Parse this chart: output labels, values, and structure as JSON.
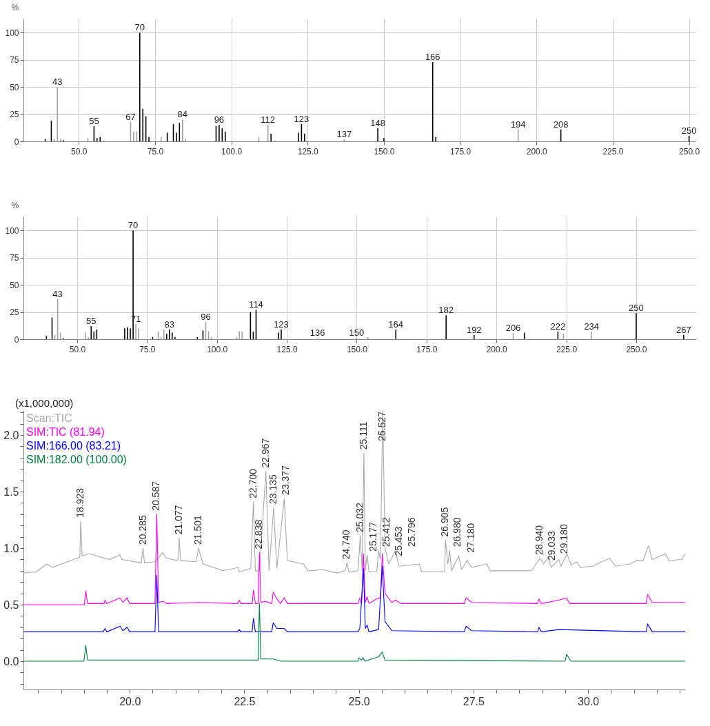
{
  "chart_data": [
    {
      "type": "bar",
      "ylabel": "%",
      "grid": true,
      "xlim": [
        33,
        251
      ],
      "ylim": [
        0,
        113
      ],
      "xticks": [
        {
          "value": 50,
          "label": "50.0"
        },
        {
          "value": 75,
          "label": "75.0"
        },
        {
          "value": 100,
          "label": "100.0"
        },
        {
          "value": 125,
          "label": "125.0"
        },
        {
          "value": 150,
          "label": "150.0"
        },
        {
          "value": 175,
          "label": "175.0"
        },
        {
          "value": 200,
          "label": "200.0"
        },
        {
          "value": 225,
          "label": "225.0"
        },
        {
          "value": 250,
          "label": "250.0"
        }
      ],
      "yticks": [
        0,
        25,
        50,
        75,
        100
      ],
      "x": [
        39,
        41,
        42,
        43,
        44,
        45,
        53,
        55,
        56,
        57,
        67,
        68,
        69,
        70,
        71,
        72,
        73,
        77,
        79,
        81,
        82,
        83,
        84,
        85,
        95,
        96,
        97,
        98,
        109,
        112,
        113,
        122,
        123,
        124,
        137,
        148,
        150,
        166,
        167,
        194,
        208,
        250
      ],
      "values": [
        2,
        19,
        2,
        50,
        2,
        1,
        3,
        14,
        3,
        4,
        18,
        9,
        9,
        100,
        30,
        23,
        4,
        4,
        8,
        16,
        8,
        17,
        20,
        2,
        14,
        15,
        12,
        9,
        4,
        15,
        7,
        8,
        16,
        7,
        2,
        12,
        3,
        73,
        4,
        11,
        11,
        5
      ],
      "colors": [
        "#000000",
        "#000000",
        "#a0a0a0",
        "#a0a0a0",
        "#a0a0a0",
        "#000000",
        "#a0a0a0",
        "#000000",
        "#000000",
        "#000000",
        "#a0a0a0",
        "#a0a0a0",
        "#a0a0a0",
        "#000000",
        "#000000",
        "#000000",
        "#000000",
        "#a0a0a0",
        "#000000",
        "#000000",
        "#000000",
        "#000000",
        "#a0a0a0",
        "#a0a0a0",
        "#000000",
        "#000000",
        "#000000",
        "#000000",
        "#a0a0a0",
        "#a0a0a0",
        "#000000",
        "#000000",
        "#000000",
        "#000000",
        "#a0a0a0",
        "#000000",
        "#000000",
        "#000000",
        "#000000",
        "#a0a0a0",
        "#000000",
        "#000000"
      ],
      "annotations": [
        {
          "text": "43",
          "x": 43,
          "y": 50
        },
        {
          "text": "55",
          "x": 55,
          "y": 14
        },
        {
          "text": "67",
          "x": 67,
          "y": 18
        },
        {
          "text": "70",
          "x": 70,
          "y": 100
        },
        {
          "text": "84",
          "x": 84,
          "y": 20
        },
        {
          "text": "96",
          "x": 96,
          "y": 15
        },
        {
          "text": "112",
          "x": 112,
          "y": 15
        },
        {
          "text": "123",
          "x": 123,
          "y": 16
        },
        {
          "text": "137",
          "x": 137,
          "y": 2
        },
        {
          "text": "148",
          "x": 148,
          "y": 12
        },
        {
          "text": "166",
          "x": 166,
          "y": 73
        },
        {
          "text": "194",
          "x": 194,
          "y": 11
        },
        {
          "text": "208",
          "x": 208,
          "y": 11
        },
        {
          "text": "250",
          "x": 250,
          "y": 5
        }
      ]
    },
    {
      "type": "bar",
      "ylabel": "%",
      "grid": true,
      "xlim": [
        32,
        270
      ],
      "ylim": [
        0,
        113
      ],
      "xticks": [
        {
          "value": 50,
          "label": "50.0"
        },
        {
          "value": 75,
          "label": "75.0"
        },
        {
          "value": 100,
          "label": "100.0"
        },
        {
          "value": 125,
          "label": "125.0"
        },
        {
          "value": 150,
          "label": "150.0"
        },
        {
          "value": 175,
          "label": "175.0"
        },
        {
          "value": 200,
          "label": "200.0"
        },
        {
          "value": 225,
          "label": "225.0"
        },
        {
          "value": 250,
          "label": "250.0"
        }
      ],
      "yticks": [
        0,
        25,
        50,
        75,
        100
      ],
      "x": [
        39,
        41,
        42,
        43,
        44,
        45,
        53,
        54,
        55,
        56,
        57,
        67,
        68,
        69,
        70,
        71,
        72,
        77,
        79,
        80,
        81,
        82,
        83,
        84,
        85,
        93,
        95,
        96,
        97,
        98,
        107,
        108,
        109,
        112,
        113,
        114,
        122,
        123,
        136,
        150,
        154,
        164,
        182,
        192,
        206,
        210,
        222,
        224,
        234,
        250,
        267
      ],
      "values": [
        3,
        20,
        4,
        37,
        6,
        1,
        6,
        2,
        12,
        7,
        9,
        10,
        11,
        10,
        100,
        14,
        10,
        2,
        7,
        2,
        9,
        5,
        9,
        6,
        2,
        2,
        8,
        16,
        7,
        2,
        2,
        7,
        7,
        25,
        7,
        27,
        6,
        9,
        1,
        1,
        2,
        9,
        22,
        4,
        6,
        6,
        7,
        5,
        7,
        24,
        4
      ],
      "colors": [
        "#000000",
        "#000000",
        "#a0a0a0",
        "#a0a0a0",
        "#a0a0a0",
        "#000000",
        "#a0a0a0",
        "#a0a0a0",
        "#000000",
        "#000000",
        "#000000",
        "#000000",
        "#000000",
        "#000000",
        "#000000",
        "#a0a0a0",
        "#a0a0a0",
        "#000000",
        "#a0a0a0",
        "#a0a0a0",
        "#a0a0a0",
        "#000000",
        "#000000",
        "#000000",
        "#000000",
        "#000000",
        "#000000",
        "#a0a0a0",
        "#a0a0a0",
        "#a0a0a0",
        "#a0a0a0",
        "#a0a0a0",
        "#a0a0a0",
        "#000000",
        "#000000",
        "#000000",
        "#000000",
        "#000000",
        "#a0a0a0",
        "#a0a0a0",
        "#a0a0a0",
        "#000000",
        "#000000",
        "#000000",
        "#a0a0a0",
        "#000000",
        "#000000",
        "#a0a0a0",
        "#a0a0a0",
        "#000000",
        "#000000"
      ],
      "annotations": [
        {
          "text": "43",
          "x": 43,
          "y": 37
        },
        {
          "text": "55",
          "x": 55,
          "y": 12
        },
        {
          "text": "70",
          "x": 70,
          "y": 100
        },
        {
          "text": "71",
          "x": 71,
          "y": 14
        },
        {
          "text": "83",
          "x": 83,
          "y": 9
        },
        {
          "text": "96",
          "x": 96,
          "y": 16
        },
        {
          "text": "114",
          "x": 114,
          "y": 27
        },
        {
          "text": "123",
          "x": 123,
          "y": 9
        },
        {
          "text": "136",
          "x": 136,
          "y": 1
        },
        {
          "text": "150",
          "x": 150,
          "y": 1
        },
        {
          "text": "164",
          "x": 164,
          "y": 9
        },
        {
          "text": "182",
          "x": 182,
          "y": 22
        },
        {
          "text": "192",
          "x": 192,
          "y": 4
        },
        {
          "text": "206",
          "x": 206,
          "y": 6
        },
        {
          "text": "222",
          "x": 222,
          "y": 7
        },
        {
          "text": "234",
          "x": 234,
          "y": 7
        },
        {
          "text": "250",
          "x": 250,
          "y": 24
        },
        {
          "text": "267",
          "x": 267,
          "y": 4
        }
      ]
    },
    {
      "type": "line",
      "legend": "top left",
      "xlim": [
        17.68,
        32.12
      ],
      "ylim": [
        -0.25,
        2.22
      ],
      "xticks": [
        {
          "value": 18,
          "label": null
        },
        {
          "value": 18.5,
          "label": null
        },
        {
          "value": 19,
          "label": null
        },
        {
          "value": 19.5,
          "label": null
        },
        {
          "value": 20,
          "label": "20.0"
        },
        {
          "value": 20.5,
          "label": null
        },
        {
          "value": 21,
          "label": null
        },
        {
          "value": 21.5,
          "label": null
        },
        {
          "value": 22,
          "label": null
        },
        {
          "value": 22.5,
          "label": "22.5"
        },
        {
          "value": 23,
          "label": null
        },
        {
          "value": 23.5,
          "label": null
        },
        {
          "value": 24,
          "label": null
        },
        {
          "value": 24.5,
          "label": null
        },
        {
          "value": 25,
          "label": "25.0"
        },
        {
          "value": 25.5,
          "label": null
        },
        {
          "value": 26,
          "label": null
        },
        {
          "value": 26.5,
          "label": null
        },
        {
          "value": 27,
          "label": null
        },
        {
          "value": 27.5,
          "label": "27.5"
        },
        {
          "value": 28,
          "label": null
        },
        {
          "value": 28.5,
          "label": null
        },
        {
          "value": 29,
          "label": null
        },
        {
          "value": 29.5,
          "label": null
        },
        {
          "value": 30,
          "label": "30.0"
        },
        {
          "value": 30.5,
          "label": null
        },
        {
          "value": 31,
          "label": null
        },
        {
          "value": 31.5,
          "label": null
        },
        {
          "value": 32,
          "label": null
        }
      ],
      "yticks": [
        {
          "value": -0.2,
          "label": null
        },
        {
          "value": -0.1,
          "label": null
        },
        {
          "value": 0,
          "label": "0.0"
        },
        {
          "value": 0.1,
          "label": null
        },
        {
          "value": 0.2,
          "label": null
        },
        {
          "value": 0.3,
          "label": null
        },
        {
          "value": 0.4,
          "label": null
        },
        {
          "value": 0.5,
          "label": "0.5"
        },
        {
          "value": 0.6,
          "label": null
        },
        {
          "value": 0.7,
          "label": null
        },
        {
          "value": 0.8,
          "label": null
        },
        {
          "value": 0.9,
          "label": null
        },
        {
          "value": 1,
          "label": "1.0"
        },
        {
          "value": 1.1,
          "label": null
        },
        {
          "value": 1.2,
          "label": null
        },
        {
          "value": 1.3,
          "label": null
        },
        {
          "value": 1.4,
          "label": null
        },
        {
          "value": 1.5,
          "label": "1.5"
        },
        {
          "value": 1.6,
          "label": null
        },
        {
          "value": 1.7,
          "label": null
        },
        {
          "value": 1.8,
          "label": null
        },
        {
          "value": 1.9,
          "label": null
        },
        {
          "value": 2,
          "label": "2.0"
        },
        {
          "value": 2.1,
          "label": null
        },
        {
          "value": 2.2,
          "label": null
        }
      ],
      "series": [
        {
          "name": "Scan:TIC",
          "color": "#a9a9a9",
          "x": [
            17.68,
            17.96,
            18.19,
            18.31,
            18.91,
            18.93,
            18.96,
            19.11,
            19.56,
            19.79,
            19.83,
            20.25,
            20.29,
            20.32,
            20.55,
            20.72,
            20.8,
            21.05,
            21.08,
            21.11,
            21.45,
            21.5,
            21.6,
            22.04,
            22.37,
            22.39,
            22.64,
            22.7,
            22.74,
            22.83,
            22.97,
            23.04,
            23.14,
            23.21,
            23.37,
            23.44,
            23.79,
            23.89,
            24.21,
            24.53,
            24.7,
            24.74,
            24.78,
            24.98,
            25.03,
            25.07,
            25.11,
            25.14,
            25.18,
            25.22,
            25.39,
            25.43,
            25.47,
            25.52,
            25.57,
            25.65,
            25.8,
            25.87,
            26.32,
            26.37,
            26.87,
            26.89,
            26.94,
            26.98,
            27.02,
            27.18,
            27.24,
            27.36,
            27.46,
            27.79,
            27.86,
            28.21,
            28.76,
            28.8,
            28.95,
            29.03,
            29.13,
            29.2,
            29.36,
            29.41,
            29.54,
            29.63,
            29.75,
            29.83,
            30.1,
            30.25,
            30.47,
            30.6,
            30.9,
            31.07,
            31.2,
            31.32,
            31.4,
            31.69,
            31.77,
            32.04,
            32.12
          ],
          "values": [
            0.78,
            0.79,
            0.86,
            0.83,
            0.92,
            1.24,
            0.93,
            0.95,
            0.9,
            0.94,
            0.9,
            0.87,
            1.0,
            0.87,
            0.88,
            0.96,
            0.91,
            0.89,
            1.09,
            0.89,
            0.88,
            1.0,
            0.86,
            0.8,
            0.83,
            0.79,
            0.82,
            1.41,
            0.8,
            0.8,
            1.68,
            0.8,
            1.36,
            0.82,
            1.44,
            0.89,
            0.86,
            0.8,
            0.81,
            0.78,
            0.8,
            0.87,
            0.79,
            0.8,
            1.11,
            0.8,
            1.84,
            0.8,
            0.94,
            0.79,
            0.79,
            0.98,
            0.9,
            2.22,
            1.0,
            0.86,
            0.98,
            0.84,
            0.86,
            0.79,
            0.79,
            1.07,
            0.86,
            0.98,
            0.8,
            0.93,
            0.81,
            0.89,
            0.83,
            0.86,
            0.8,
            0.8,
            0.8,
            0.82,
            0.91,
            0.86,
            0.92,
            0.83,
            0.9,
            0.84,
            0.95,
            0.85,
            0.88,
            0.83,
            0.84,
            0.87,
            0.91,
            0.84,
            0.86,
            0.89,
            0.89,
            1.02,
            0.9,
            0.95,
            0.89,
            0.9,
            0.95
          ]
        },
        {
          "name": "SIM:TIC (81.94)",
          "color": "#ff00ff",
          "x": [
            17.68,
            19.01,
            19.04,
            19.08,
            19.44,
            19.46,
            19.5,
            19.79,
            19.85,
            19.94,
            20.0,
            20.55,
            20.59,
            20.63,
            20.73,
            20.8,
            21.5,
            22.35,
            22.39,
            22.42,
            22.67,
            22.7,
            22.74,
            22.8,
            22.83,
            22.86,
            22.96,
            23.1,
            23.13,
            23.21,
            23.29,
            23.37,
            23.44,
            24.98,
            25.02,
            25.06,
            25.1,
            25.14,
            25.18,
            25.22,
            25.43,
            25.47,
            25.51,
            25.57,
            25.72,
            25.8,
            25.92,
            27.3,
            27.34,
            27.46,
            28.9,
            28.93,
            28.98,
            29.36,
            29.53,
            29.6,
            31.27,
            31.3,
            31.4,
            32.12
          ],
          "values": [
            0.5,
            0.5,
            0.62,
            0.51,
            0.51,
            0.54,
            0.51,
            0.56,
            0.52,
            0.56,
            0.51,
            0.51,
            1.3,
            0.52,
            0.53,
            0.51,
            0.52,
            0.51,
            0.54,
            0.51,
            0.51,
            0.63,
            0.51,
            0.51,
            0.96,
            0.52,
            0.53,
            0.51,
            0.61,
            0.55,
            0.51,
            0.56,
            0.51,
            0.51,
            0.56,
            0.51,
            0.95,
            0.52,
            0.57,
            0.51,
            0.56,
            0.55,
            0.95,
            0.6,
            0.52,
            0.54,
            0.51,
            0.51,
            0.56,
            0.52,
            0.51,
            0.55,
            0.51,
            0.54,
            0.56,
            0.51,
            0.51,
            0.59,
            0.52,
            0.52
          ]
        },
        {
          "name": "SIM:166.00 (83.21)",
          "color": "#0000ff",
          "x": [
            17.68,
            19.42,
            19.46,
            19.5,
            19.79,
            19.85,
            19.94,
            20.0,
            20.55,
            20.59,
            20.63,
            22.35,
            22.39,
            22.42,
            22.67,
            22.7,
            22.74,
            23.1,
            23.13,
            23.21,
            23.37,
            23.44,
            24.98,
            25.02,
            25.1,
            25.14,
            25.18,
            25.22,
            25.43,
            25.51,
            25.57,
            25.72,
            27.3,
            27.34,
            27.46,
            28.9,
            28.93,
            28.98,
            29.36,
            31.27,
            31.3,
            31.4,
            32.12
          ],
          "values": [
            0.26,
            0.26,
            0.29,
            0.26,
            0.31,
            0.27,
            0.3,
            0.26,
            0.26,
            0.76,
            0.26,
            0.26,
            0.28,
            0.26,
            0.26,
            0.38,
            0.26,
            0.26,
            0.34,
            0.29,
            0.29,
            0.26,
            0.26,
            0.29,
            0.82,
            0.29,
            0.32,
            0.26,
            0.28,
            0.84,
            0.35,
            0.27,
            0.26,
            0.31,
            0.27,
            0.26,
            0.3,
            0.26,
            0.28,
            0.26,
            0.33,
            0.26,
            0.26
          ]
        },
        {
          "name": "SIM:182.00 (100.00)",
          "color": "#008040",
          "x": [
            17.68,
            19.0,
            19.04,
            19.08,
            22.8,
            22.83,
            22.86,
            23.13,
            23.3,
            24.98,
            25.0,
            25.05,
            25.09,
            25.13,
            25.43,
            25.51,
            25.57,
            29.5,
            29.53,
            29.63,
            32.12
          ],
          "values": [
            0.0,
            0.0,
            0.14,
            0.01,
            0.01,
            0.51,
            0.02,
            0.02,
            0.0,
            0.0,
            0.03,
            0.01,
            0.03,
            0.0,
            0.04,
            0.08,
            0.01,
            0.0,
            0.06,
            0.0,
            0.0
          ]
        }
      ],
      "annotations": [
        "(x1,000,000)",
        {
          "text": "18.923",
          "x": 18.93,
          "y": 1.24
        },
        {
          "text": "20.285",
          "x": 20.29,
          "y": 1.0
        },
        {
          "text": "20.587",
          "x": 20.59,
          "y": 1.3
        },
        {
          "text": "21.077",
          "x": 21.08,
          "y": 1.09
        },
        {
          "text": "21.501",
          "x": 21.5,
          "y": 1.0
        },
        {
          "text": "22.700",
          "x": 22.7,
          "y": 1.41
        },
        {
          "text": "22.838",
          "x": 22.83,
          "y": 0.96
        },
        {
          "text": "22.967",
          "x": 22.97,
          "y": 1.68
        },
        {
          "text": "23.135",
          "x": 23.14,
          "y": 1.36
        },
        {
          "text": "23.377",
          "x": 23.37,
          "y": 1.44
        },
        {
          "text": "24.740",
          "x": 24.74,
          "y": 0.87
        },
        {
          "text": "25.032",
          "x": 25.03,
          "y": 1.11
        },
        {
          "text": "25.111",
          "x": 25.11,
          "y": 1.84
        },
        {
          "text": "25.177",
          "x": 25.18,
          "y": 0.94
        },
        {
          "text": "25.412",
          "x": 25.43,
          "y": 0.98
        },
        {
          "text": "25.453",
          "x": 25.47,
          "y": 0.9
        },
        {
          "text": "25.527",
          "x": 25.52,
          "y": 2.22
        },
        {
          "text": "25.796",
          "x": 25.8,
          "y": 0.98
        },
        {
          "text": "26.905",
          "x": 26.89,
          "y": 1.07
        },
        {
          "text": "26.980",
          "x": 26.98,
          "y": 0.98
        },
        {
          "text": "27.180",
          "x": 27.18,
          "y": 0.93
        },
        {
          "text": "28.940",
          "x": 28.95,
          "y": 0.91
        },
        {
          "text": "29.033",
          "x": 29.03,
          "y": 0.86
        },
        {
          "text": "29.180",
          "x": 29.13,
          "y": 0.92
        }
      ]
    }
  ]
}
